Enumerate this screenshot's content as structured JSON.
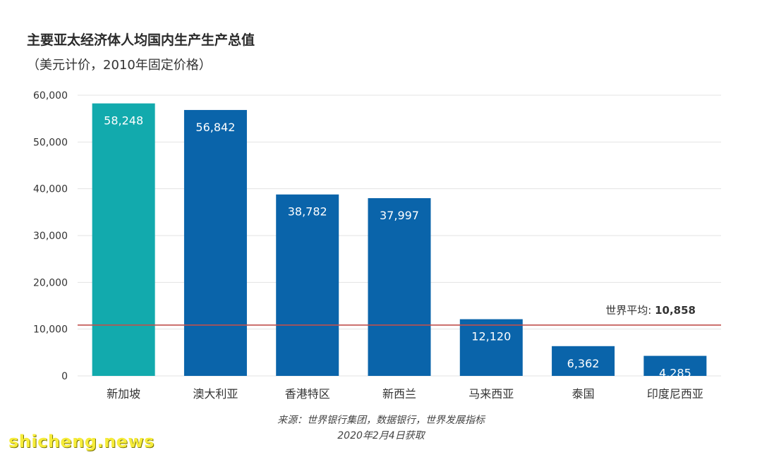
{
  "chart_data": {
    "type": "bar",
    "title": "主要亚太经济体人均国内生产生产总值",
    "subtitle": "（美元计价，2010年固定价格）",
    "categories": [
      "新加坡",
      "澳大利亚",
      "香港特区",
      "新西兰",
      "马来西亚",
      "泰国",
      "印度尼西亚"
    ],
    "values": [
      58248,
      56842,
      38782,
      37997,
      12120,
      6362,
      4285
    ],
    "value_labels": [
      "58,248",
      "56,842",
      "38,782",
      "37,997",
      "12,120",
      "6,362",
      "4,285"
    ],
    "yticks": [
      0,
      10000,
      20000,
      30000,
      40000,
      50000,
      60000
    ],
    "ytick_labels": [
      "0",
      "10,000",
      "20,000",
      "30,000",
      "40,000",
      "50,000",
      "60,000"
    ],
    "ylim": [
      0,
      60000
    ],
    "grid": true,
    "highlight_index": 0,
    "colors": {
      "highlight": "#12aaad",
      "bar": "#0a64aa",
      "reference_line": "#c0504d",
      "grid": "#e3e3e3"
    },
    "reference_line": {
      "value": 10858,
      "label": "世界平均:",
      "value_label": "10,858"
    }
  },
  "source": {
    "line1": "来源：世界银行集团，数据银行，世界发展指标",
    "line2": "2020年2月4日获取"
  },
  "watermark": "shicheng.news"
}
